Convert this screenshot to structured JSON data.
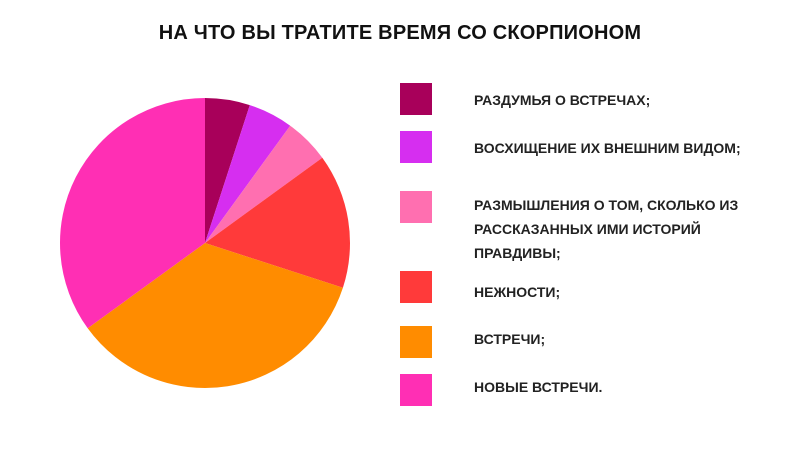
{
  "chart_data": {
    "type": "pie",
    "title": "НА ЧТО ВЫ ТРАТИТЕ ВРЕМЯ СО СКОРПИОНОМ",
    "legend_position": "right",
    "categories": [
      "РАЗДУМЬЯ О ВСТРЕЧАХ;",
      "ВОСХИЩЕНИЕ ИХ ВНЕШНИМ ВИДОМ;",
      "РАЗМЫШЛЕНИЯ О ТОМ, СКОЛЬКО ИЗ РАССКАЗАННЫХ ИМИ ИСТОРИЙ ПРАВДИВЫ;",
      "НЕЖНОСТИ;",
      "ВСТРЕЧИ;",
      "НОВЫЕ ВСТРЕЧИ."
    ],
    "values": [
      5,
      5,
      5,
      15,
      35,
      35
    ],
    "colors": [
      "#a8005a",
      "#d62ef0",
      "#ff6fb0",
      "#ff3a3a",
      "#ff8c00",
      "#ff2fb4"
    ]
  }
}
